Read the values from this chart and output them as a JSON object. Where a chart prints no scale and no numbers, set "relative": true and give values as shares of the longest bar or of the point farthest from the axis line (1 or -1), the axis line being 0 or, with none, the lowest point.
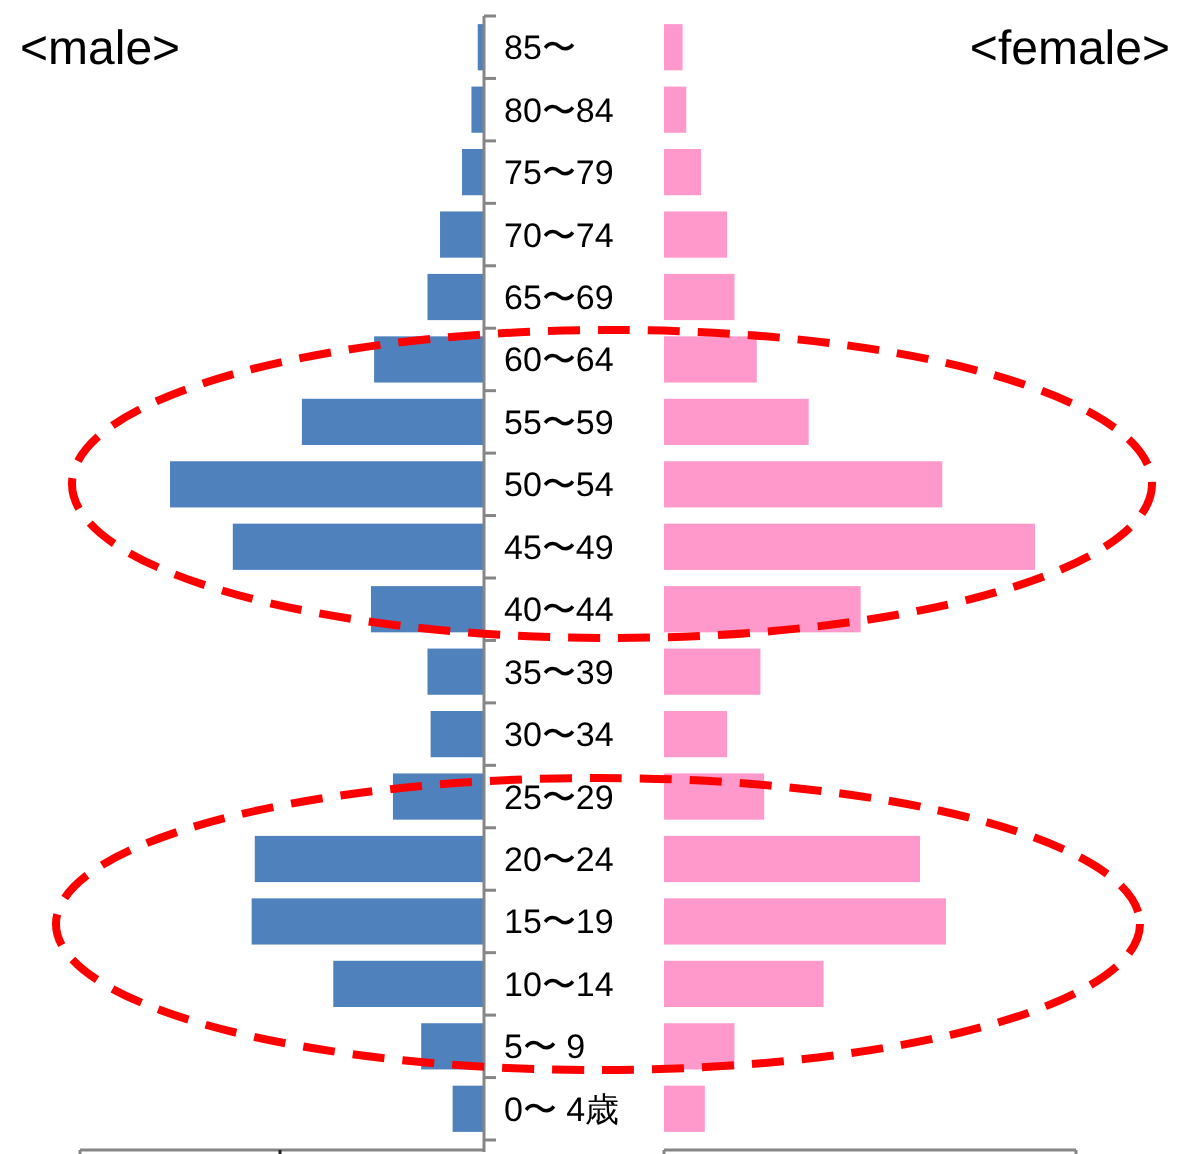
{
  "chart_data": [
    {
      "type": "bar",
      "orientation": "horizontal",
      "relative": true,
      "title": "<male>",
      "categories": [
        "85〜",
        "80〜84",
        "75〜79",
        "70〜74",
        "65〜69",
        "60〜64",
        "55〜59",
        "50〜54",
        "45〜49",
        "40〜44",
        "35〜39",
        "30〜34",
        "25〜29",
        "20〜24",
        "15〜19",
        "10〜14",
        "5〜 9",
        "0〜 4歳"
      ],
      "series": [
        {
          "color": "#4f81bd",
          "values": [
            -0.02,
            -0.04,
            -0.07,
            -0.14,
            -0.18,
            -0.35,
            -0.58,
            -1,
            -0.8,
            -0.36,
            -0.18,
            -0.17,
            -0.29,
            -0.73,
            -0.74,
            -0.48,
            -0.2,
            -0.1
          ]
        }
      ]
    },
    {
      "type": "bar",
      "orientation": "horizontal",
      "relative": true,
      "title": "<female>",
      "tick_labels": false,
      "categories": [
        null,
        null,
        null,
        null,
        null,
        null,
        null,
        null,
        null,
        null,
        null,
        null,
        null,
        null,
        null,
        null,
        null,
        null
      ],
      "series": [
        {
          "color": "#ff99cc",
          "values": [
            0.05,
            0.06,
            0.1,
            0.17,
            0.19,
            0.25,
            0.39,
            0.75,
            1,
            0.53,
            0.26,
            0.17,
            0.27,
            0.69,
            0.76,
            0.43,
            0.19,
            0.11
          ]
        }
      ]
    }
  ]
}
